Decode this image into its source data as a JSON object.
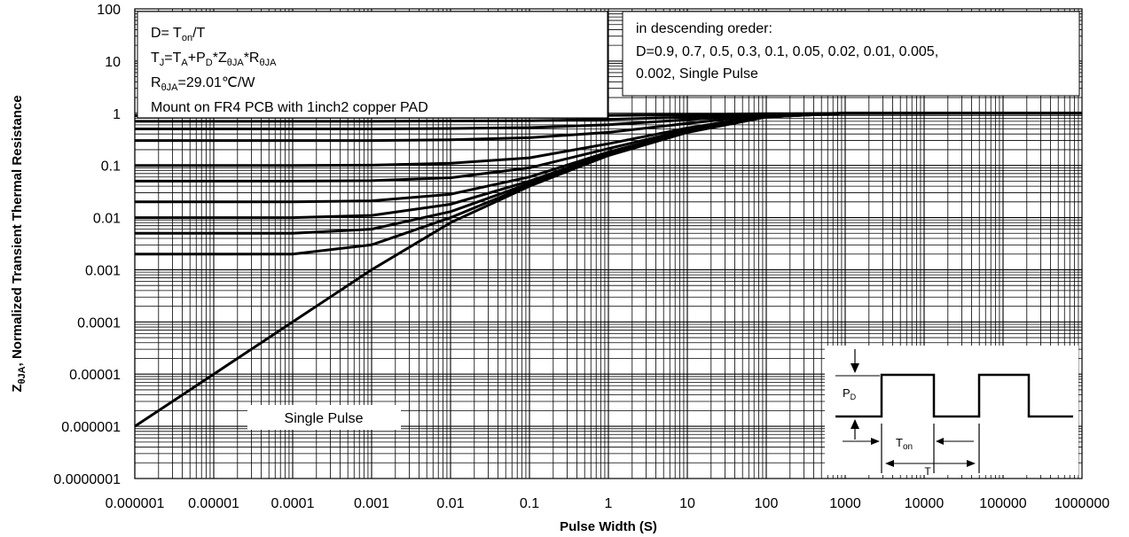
{
  "chart_data": {
    "type": "line",
    "title": "",
    "xlabel": "Pulse Width (S)",
    "ylabel": "ZθJA, Normalized Transient Thermal Resistance",
    "x_scale": "log",
    "y_scale": "log",
    "xlim": [
      1e-06,
      1000000
    ],
    "ylim": [
      1e-07,
      100
    ],
    "x_ticks": [
      "0.000001",
      "0.00001",
      "0.0001",
      "0.001",
      "0.01",
      "0.1",
      "1",
      "10",
      "100",
      "1000",
      "10000",
      "100000",
      "1000000"
    ],
    "y_ticks": [
      "0.0000001",
      "0.000001",
      "0.00001",
      "0.0001",
      "0.001",
      "0.01",
      "0.1",
      "1",
      "10",
      "100"
    ],
    "grid": true,
    "annotation_left": {
      "line1_main": "D= T",
      "line1_sub": "on",
      "line1_tail": "/T",
      "line2": [
        {
          "t": "T",
          "s": false
        },
        {
          "t": "J",
          "s": true
        },
        {
          "t": "=T",
          "s": false
        },
        {
          "t": "A",
          "s": true
        },
        {
          "t": "+P",
          "s": false
        },
        {
          "t": "D",
          "s": true
        },
        {
          "t": "*Z",
          "s": false
        },
        {
          "t": "θJA",
          "s": true
        },
        {
          "t": "*R",
          "s": false
        },
        {
          "t": "θJA",
          "s": true
        }
      ],
      "line3_main": "R",
      "line3_sub": "θJA",
      "line3_tail": "=29.01℃/W",
      "line4": "Mount on FR4 PCB with 1inch2 copper PAD"
    },
    "annotation_right": {
      "line1": "in descending oreder:",
      "line2": "D=0.9, 0.7, 0.5, 0.3, 0.1, 0.05, 0.02, 0.01, 0.005,",
      "line3": "0.002, Single Pulse"
    },
    "single_pulse_label": "Single Pulse",
    "inset": {
      "pd_main": "P",
      "pd_sub": "D",
      "ton_main": "T",
      "ton_sub": "on",
      "t_label": "T"
    },
    "series": [
      {
        "duty": 0.9,
        "x": [
          1e-06,
          0.001,
          0.1,
          1,
          10,
          100,
          1000000
        ],
        "y": [
          0.9,
          0.9,
          0.9,
          0.91,
          0.93,
          0.98,
          1.0
        ]
      },
      {
        "duty": 0.7,
        "x": [
          1e-06,
          0.001,
          0.01,
          0.1,
          1,
          10,
          100,
          1000,
          1000000
        ],
        "y": [
          0.7,
          0.7,
          0.71,
          0.72,
          0.76,
          0.84,
          0.96,
          1.0,
          1.0
        ]
      },
      {
        "duty": 0.5,
        "x": [
          1e-06,
          0.001,
          0.01,
          0.1,
          1,
          10,
          100,
          1000,
          1000000
        ],
        "y": [
          0.5,
          0.5,
          0.51,
          0.53,
          0.6,
          0.75,
          0.95,
          1.0,
          1.0
        ]
      },
      {
        "duty": 0.3,
        "x": [
          1e-06,
          0.001,
          0.01,
          0.1,
          1,
          10,
          100,
          1000,
          1000000
        ],
        "y": [
          0.3,
          0.3,
          0.31,
          0.34,
          0.43,
          0.64,
          0.93,
          1.0,
          1.0
        ]
      },
      {
        "duty": 0.1,
        "x": [
          1e-06,
          0.0001,
          0.001,
          0.01,
          0.1,
          1,
          10,
          100,
          1000,
          1000000
        ],
        "y": [
          0.1,
          0.1,
          0.101,
          0.11,
          0.14,
          0.26,
          0.52,
          0.9,
          1.0,
          1.0
        ]
      },
      {
        "duty": 0.05,
        "x": [
          1e-06,
          0.0001,
          0.001,
          0.01,
          0.1,
          1,
          10,
          100,
          1000,
          1000000
        ],
        "y": [
          0.05,
          0.05,
          0.051,
          0.058,
          0.09,
          0.21,
          0.48,
          0.88,
          1.0,
          1.0
        ]
      },
      {
        "duty": 0.02,
        "x": [
          1e-06,
          0.0001,
          0.001,
          0.01,
          0.1,
          1,
          10,
          100,
          1000,
          1000000
        ],
        "y": [
          0.02,
          0.02,
          0.021,
          0.028,
          0.06,
          0.18,
          0.45,
          0.86,
          1.0,
          1.0
        ]
      },
      {
        "duty": 0.01,
        "x": [
          1e-06,
          0.0001,
          0.001,
          0.01,
          0.1,
          1,
          10,
          100,
          1000,
          1000000
        ],
        "y": [
          0.01,
          0.01,
          0.011,
          0.018,
          0.05,
          0.17,
          0.44,
          0.85,
          1.0,
          1.0
        ]
      },
      {
        "duty": 0.005,
        "x": [
          1e-06,
          0.0001,
          0.001,
          0.01,
          0.1,
          1,
          10,
          100,
          1000,
          1000000
        ],
        "y": [
          0.005,
          0.005,
          0.006,
          0.013,
          0.045,
          0.165,
          0.435,
          0.85,
          1.0,
          1.0
        ]
      },
      {
        "duty": 0.002,
        "x": [
          1e-06,
          0.0001,
          0.001,
          0.01,
          0.1,
          1,
          10,
          100,
          1000,
          1000000
        ],
        "y": [
          0.002,
          0.002,
          0.003,
          0.01,
          0.042,
          0.16,
          0.43,
          0.85,
          1.0,
          1.0
        ]
      },
      {
        "duty": "single",
        "x": [
          1e-06,
          1e-05,
          0.0001,
          0.001,
          0.01,
          0.1,
          1,
          10,
          100,
          1000,
          1000000
        ],
        "y": [
          1e-06,
          1e-05,
          0.0001,
          0.001,
          0.008,
          0.04,
          0.155,
          0.43,
          0.85,
          1.0,
          1.0
        ]
      }
    ]
  }
}
